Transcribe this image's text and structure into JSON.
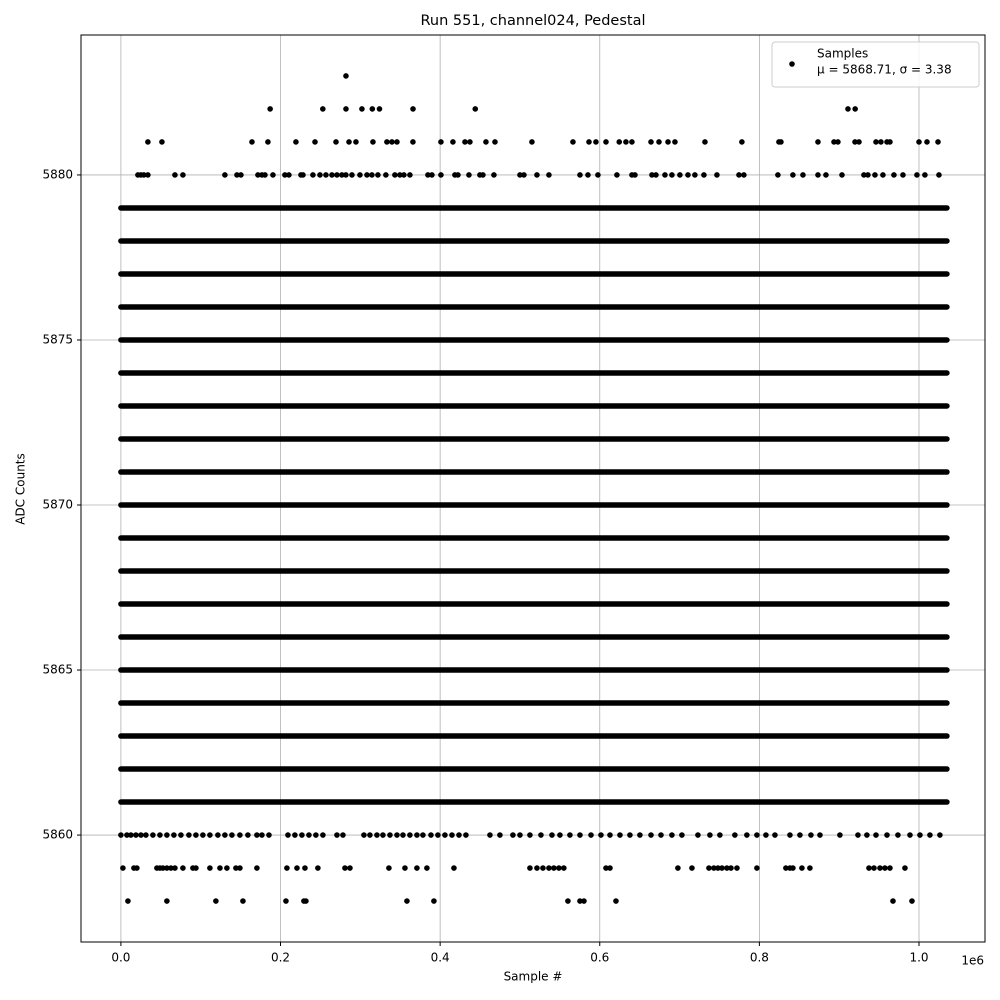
{
  "chart_data": {
    "type": "scatter",
    "title": "Run 551, channel024, Pedestal",
    "xlabel": "Sample #",
    "ylabel": "ADC Counts",
    "x_offset_label": "1e6",
    "xlim": [
      -50000,
      1082700
    ],
    "ylim": [
      5856.76,
      5884.24
    ],
    "xticks": [
      {
        "value": 0,
        "label": "0.0"
      },
      {
        "value": 200000,
        "label": "0.2"
      },
      {
        "value": 400000,
        "label": "0.4"
      },
      {
        "value": 600000,
        "label": "0.6"
      },
      {
        "value": 800000,
        "label": "0.8"
      },
      {
        "value": 1000000,
        "label": "1.0"
      }
    ],
    "yticks": [
      5860,
      5865,
      5870,
      5875,
      5880
    ],
    "grid": true,
    "legend": "upper right",
    "color": "#000000",
    "series": [
      {
        "name": "Samples",
        "legend_note": "μ = 5868.71, σ = 3.38",
        "dense_rows": [
          {
            "y": 5861,
            "span": [
              0,
              1035000
            ]
          },
          {
            "y": 5862,
            "span": [
              0,
              1035000
            ]
          },
          {
            "y": 5863,
            "span": [
              0,
              1035000
            ]
          },
          {
            "y": 5864,
            "span": [
              0,
              1035000
            ]
          },
          {
            "y": 5865,
            "span": [
              0,
              1035000
            ]
          },
          {
            "y": 5866,
            "span": [
              0,
              1035000
            ]
          },
          {
            "y": 5867,
            "span": [
              0,
              1035000
            ]
          },
          {
            "y": 5868,
            "span": [
              0,
              1035000
            ]
          },
          {
            "y": 5869,
            "span": [
              0,
              1035000
            ]
          },
          {
            "y": 5870,
            "span": [
              0,
              1035000
            ]
          },
          {
            "y": 5871,
            "span": [
              0,
              1035000
            ]
          },
          {
            "y": 5872,
            "span": [
              0,
              1035000
            ]
          },
          {
            "y": 5873,
            "span": [
              0,
              1035000
            ]
          },
          {
            "y": 5874,
            "span": [
              0,
              1035000
            ]
          },
          {
            "y": 5875,
            "span": [
              0,
              1035000
            ]
          },
          {
            "y": 5876,
            "span": [
              0,
              1035000
            ]
          },
          {
            "y": 5877,
            "span": [
              0,
              1035000
            ]
          },
          {
            "y": 5878,
            "span": [
              0,
              1035000
            ]
          },
          {
            "y": 5879,
            "span": [
              0,
              1035000
            ]
          }
        ],
        "sparse_rows": [
          {
            "y": 5883,
            "x": [
              282000
            ]
          },
          {
            "y": 5882,
            "x": [
              187000,
              253000,
              282000,
              302000,
              315000,
              324000,
              366000,
              444000,
              911000,
              920000
            ]
          },
          {
            "y": 5881,
            "x": [
              33800,
              51400,
              164200,
              184200,
              219300,
              243200,
              269500,
              285800,
              294500,
              315800,
              333300,
              339600,
              345900,
              365900,
              401000,
              416000,
              431100,
              437300,
              457400,
              468700,
              515000,
              566400,
              586500,
              595200,
              607800,
              624400,
              632800,
              640300,
              664200,
              674200,
              685500,
              694200,
              731800,
              778100,
              824500,
              827000,
              873400,
              893500,
              898400,
              919800,
              924800,
              946100,
              952300,
              959900,
              963600,
              1000000,
              1010000,
              1023800
            ]
          },
          {
            "y": 5880,
            "x": [
              21300,
              25100,
              28800,
              33800,
              67700,
              77700,
              130300,
              145400,
              150400,
              171700,
              176700,
              180500,
              190500,
              205500,
              210500,
              225600,
              228100,
              240600,
              249400,
              256900,
              264400,
              270700,
              276900,
              281900,
              289500,
              299500,
              308300,
              314500,
              322000,
              332000,
              343300,
              349600,
              354600,
              362100,
              384700,
              389700,
              401000,
              418500,
              422300,
              436100,
              449800,
              453600,
              467400,
              500000,
              505000,
              521300,
              536300,
              575200,
              585200,
              597700,
              621500,
              640300,
              644100,
              665400,
              670400,
              681700,
              690400,
              700400,
              710500,
              719200,
              730500,
              746800,
              774400,
              780600,
              823200,
              842000,
              854600,
              873400,
              883400,
              903500,
              931000,
              936000,
              944800,
              954800,
              968600,
              979900,
              997400,
              1007400,
              1025000
            ]
          },
          {
            "y": 5860,
            "x": [
              0,
              7500,
              12500,
              18800,
              25100,
              31300,
              40100,
              48900,
              57600,
              66400,
              75200,
              85200,
              94000,
              102700,
              111500,
              121500,
              130300,
              139100,
              149100,
              159100,
              170400,
              176700,
              185500,
              209300,
              218000,
              226800,
              235600,
              244300,
              253100,
              270700,
              278200,
              304500,
              312000,
              320800,
              328300,
              337100,
              345900,
              353400,
              362100,
              370900,
              378400,
              388500,
              397200,
              406000,
              414800,
              423600,
              432300,
              462400,
              474900,
              491200,
              500000,
              512500,
              526300,
              540100,
              550100,
              562600,
              575200,
              589000,
              601500,
              612800,
              625300,
              637800,
              650300,
              664200,
              676700,
              690400,
              702900,
              723000,
              738000,
              750500,
              769300,
              784300,
              796900,
              808200,
              819500,
              838300,
              850800,
              864600,
              875900,
              900900,
              923500,
              934700,
              946100,
              959900,
              973600,
              988700,
              1001200,
              1013700,
              1026200
            ]
          },
          {
            "y": 5859,
            "x": [
              2500,
              16300,
              20000,
              45100,
              48900,
              52600,
              57600,
              62700,
              67700,
              77700,
              90200,
              94000,
              111500,
              124100,
              132800,
              144100,
              149100,
              170400,
              208000,
              220600,
              230600,
              246800,
              280700,
              287000,
              335800,
              355900,
              370900,
              383400,
              417300,
              512500,
              521300,
              528800,
              536300,
              542500,
              548800,
              555000,
              607800,
              612800,
              697900,
              715500,
              736800,
              743000,
              748100,
              753100,
              759300,
              764400,
              771900,
              796900,
              833200,
              838300,
              842000,
              853300,
              863300,
              937300,
              943600,
              951100,
              957300,
              963600,
              982400
            ]
          },
          {
            "y": 5858,
            "x": [
              8800,
              57600,
              119000,
              152900,
              206800,
              229300,
              231800,
              358400,
              392200,
              560100,
              575200,
              580200,
              620300,
              967400,
              991200
            ]
          }
        ]
      }
    ]
  }
}
